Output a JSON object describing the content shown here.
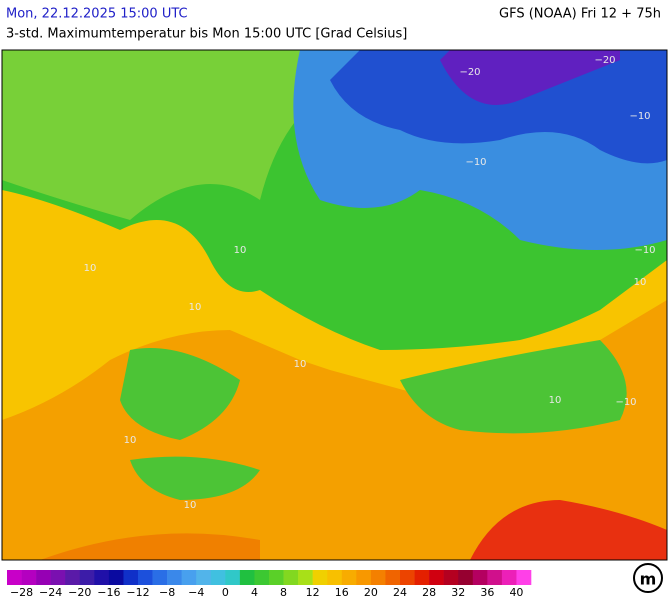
{
  "header": {
    "date": "Mon, 22.12.2025 15:00 UTC",
    "model": "GFS (NOAA) Fri 12 + 75h",
    "subtitle": "3-std. Maximumtemperatur bis Mon 15:00 UTC [Grad Celsius]"
  },
  "map": {
    "contour_labels": [
      "−20",
      "−20",
      "−10",
      "−10",
      "−10",
      "−10",
      "10",
      "10",
      "10",
      "10",
      "10",
      "10",
      "10",
      "10"
    ]
  },
  "legend": {
    "labels": [
      "−28",
      "−24",
      "−20",
      "−16",
      "−12",
      "−8",
      "−4",
      "0",
      "4",
      "8",
      "12",
      "16",
      "20",
      "24",
      "28",
      "32",
      "36",
      "40"
    ],
    "colors": [
      "#c800c8",
      "#b400c0",
      "#9600b4",
      "#7a10b0",
      "#5a1aa8",
      "#3c1ca8",
      "#2010a8",
      "#0a0aa0",
      "#1030c8",
      "#1c50dc",
      "#2a6ee6",
      "#3a88ea",
      "#48a0ee",
      "#52b4ea",
      "#40c0e0",
      "#30c8c8",
      "#20c040",
      "#3cc832",
      "#5ad028",
      "#82d820",
      "#a8e018",
      "#f0d000",
      "#f8c000",
      "#f8ac00",
      "#f89800",
      "#f48000",
      "#f06400",
      "#ec4400",
      "#e42000",
      "#d00010",
      "#b40020",
      "#960030",
      "#b40060",
      "#d0108c",
      "#ec20b8",
      "#ff40e8"
    ],
    "logo": "m"
  }
}
